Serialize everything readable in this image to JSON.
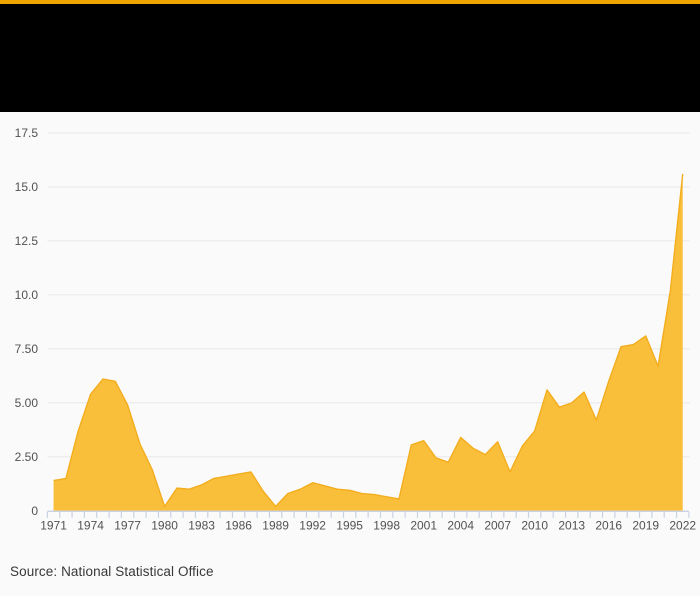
{
  "header": {
    "accent_color": "#f0a400",
    "banner_color": "#000000"
  },
  "footer": {
    "source": "Source: National Statistical Office"
  },
  "chart_data": {
    "type": "area",
    "x": [
      1971,
      1972,
      1973,
      1974,
      1975,
      1976,
      1977,
      1978,
      1979,
      1980,
      1981,
      1982,
      1983,
      1984,
      1985,
      1986,
      1987,
      1988,
      1989,
      1990,
      1991,
      1992,
      1993,
      1994,
      1995,
      1996,
      1997,
      1998,
      1999,
      2000,
      2001,
      2002,
      2003,
      2004,
      2005,
      2006,
      2007,
      2008,
      2009,
      2010,
      2011,
      2012,
      2013,
      2014,
      2015,
      2016,
      2017,
      2018,
      2019,
      2020,
      2021,
      2022
    ],
    "values": [
      1.4,
      1.5,
      3.7,
      5.4,
      6.1,
      6.0,
      4.9,
      3.1,
      1.9,
      0.2,
      1.05,
      1.0,
      1.2,
      1.5,
      1.6,
      1.7,
      1.8,
      0.9,
      0.2,
      0.8,
      1.0,
      1.3,
      1.15,
      1.0,
      0.95,
      0.8,
      0.75,
      0.65,
      0.55,
      3.05,
      3.25,
      2.45,
      2.25,
      3.4,
      2.9,
      2.6,
      3.2,
      1.8,
      3.0,
      3.7,
      5.6,
      4.8,
      5.0,
      5.5,
      4.2,
      6.0,
      7.6,
      7.7,
      8.1,
      6.7,
      10.2,
      15.6
    ],
    "x_tick_labels": [
      "1971",
      "1974",
      "1977",
      "1980",
      "1983",
      "1986",
      "1989",
      "1992",
      "1995",
      "1998",
      "2001",
      "2004",
      "2007",
      "2010",
      "2013",
      "2016",
      "2019",
      "2022"
    ],
    "y_ticks": [
      {
        "value": 0,
        "label": "0"
      },
      {
        "value": 2.5,
        "label": "2.50"
      },
      {
        "value": 5,
        "label": "5.00"
      },
      {
        "value": 7.5,
        "label": "7.50"
      },
      {
        "value": 10,
        "label": "10.0"
      },
      {
        "value": 12.5,
        "label": "12.5"
      },
      {
        "value": 15,
        "label": "15.0"
      },
      {
        "value": 17.5,
        "label": "17.5"
      }
    ],
    "ylim": [
      0,
      17.5
    ],
    "grid": true,
    "legend": "none",
    "xlabel": "",
    "ylabel": "",
    "fill_color": "#f9bf3b",
    "line_color": "#f3ad1d",
    "axis_color": "#c9d1e2",
    "grid_color": "#e8e8e8",
    "tick_label_color": "#525252"
  }
}
